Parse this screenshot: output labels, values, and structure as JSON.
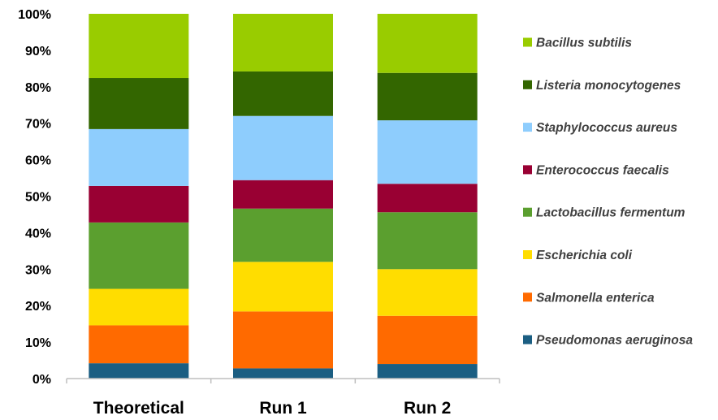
{
  "chart_data": {
    "type": "bar",
    "stacked": true,
    "categories": [
      "Theoretical",
      "Run 1",
      "Run 2"
    ],
    "ylim": [
      0,
      100
    ],
    "yticks": [
      0,
      10,
      20,
      30,
      40,
      50,
      60,
      70,
      80,
      90,
      100
    ],
    "ytick_labels": [
      "0%",
      "10%",
      "20%",
      "30%",
      "40%",
      "50%",
      "60%",
      "70%",
      "80%",
      "90%",
      "100%"
    ],
    "grid": false,
    "legend_position": "right",
    "series": [
      {
        "name": "Pseudomonas aeruginosa",
        "color": "#1b5e82",
        "values": [
          4.2,
          2.8,
          4.0
        ]
      },
      {
        "name": "Salmonella enterica",
        "color": "#ff6a00",
        "values": [
          10.4,
          15.6,
          13.2
        ]
      },
      {
        "name": "Escherichia coli",
        "color": "#ffdd00",
        "values": [
          10.0,
          13.6,
          12.8
        ]
      },
      {
        "name": "Lactobacillus fermentum",
        "color": "#5b9f2f",
        "values": [
          18.2,
          14.6,
          15.6
        ]
      },
      {
        "name": "Enterococcus faecalis",
        "color": "#990033",
        "values": [
          10.0,
          7.8,
          7.8
        ]
      },
      {
        "name": "Staphylococcus aureus",
        "color": "#8ecdfd",
        "values": [
          15.6,
          17.6,
          17.4
        ]
      },
      {
        "name": "Listeria monocytogenes",
        "color": "#336600",
        "values": [
          14.0,
          12.2,
          13.0
        ]
      },
      {
        "name": "Bacillus subtilis",
        "color": "#99cc00",
        "values": [
          17.6,
          15.8,
          16.2
        ]
      }
    ]
  }
}
